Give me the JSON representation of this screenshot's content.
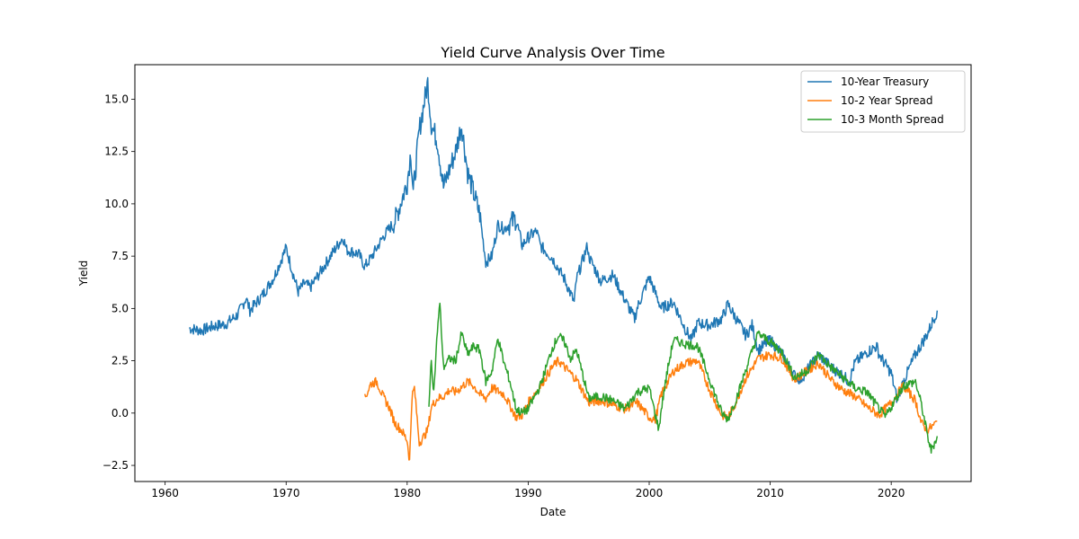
{
  "chart_data": {
    "type": "line",
    "title": "Yield Curve Analysis Over Time",
    "xlabel": "Date",
    "ylabel": "Yield",
    "x_ticks": [
      "1960",
      "1970",
      "1980",
      "1990",
      "2000",
      "2010",
      "2020"
    ],
    "y_ticks": [
      "−2.5",
      "0.0",
      "2.5",
      "5.0",
      "7.5",
      "10.0",
      "12.5",
      "15.0"
    ],
    "xlim": [
      1957.5,
      2026.6
    ],
    "ylim": [
      -3.27,
      16.65
    ],
    "grid": false,
    "legend_position": "top-right",
    "series": [
      {
        "name": "10-Year Treasury",
        "color": "#1f77b4",
        "x": [
          1962.0,
          1963.0,
          1964.0,
          1965.0,
          1966.0,
          1966.7,
          1967.0,
          1968.0,
          1969.0,
          1970.0,
          1970.5,
          1971.0,
          1971.5,
          1972.0,
          1973.0,
          1974.0,
          1974.7,
          1975.0,
          1976.0,
          1976.5,
          1977.0,
          1978.0,
          1979.0,
          1980.0,
          1980.3,
          1980.5,
          1981.0,
          1981.7,
          1982.0,
          1982.5,
          1983.0,
          1984.0,
          1984.5,
          1985.0,
          1986.0,
          1986.5,
          1987.0,
          1987.5,
          1988.0,
          1989.0,
          1989.5,
          1990.0,
          1990.7,
          1991.0,
          1992.0,
          1993.0,
          1993.8,
          1994.0,
          1994.9,
          1995.0,
          1996.0,
          1997.0,
          1998.0,
          1998.8,
          1999.0,
          2000.0,
          2001.0,
          2002.0,
          2003.0,
          2003.5,
          2004.0,
          2005.0,
          2006.0,
          2006.5,
          2007.0,
          2008.0,
          2008.5,
          2009.0,
          2010.0,
          2011.0,
          2012.0,
          2012.5,
          2013.0,
          2014.0,
          2015.0,
          2016.0,
          2016.5,
          2017.0,
          2018.0,
          2018.8,
          2019.0,
          2020.0,
          2020.5,
          2021.0,
          2022.0,
          2023.0,
          2023.8
        ],
        "y": [
          4.05,
          3.95,
          4.15,
          4.25,
          4.7,
          5.5,
          4.9,
          5.6,
          6.5,
          7.9,
          6.8,
          5.8,
          6.2,
          6.0,
          6.9,
          7.8,
          8.4,
          7.8,
          7.6,
          7.0,
          7.4,
          8.4,
          9.2,
          11.0,
          12.5,
          10.5,
          13.5,
          15.8,
          13.8,
          13.0,
          10.8,
          12.5,
          13.8,
          11.5,
          9.5,
          7.2,
          7.5,
          9.0,
          8.8,
          9.3,
          8.0,
          8.4,
          8.7,
          8.0,
          7.4,
          6.4,
          5.3,
          6.4,
          8.0,
          7.5,
          6.3,
          6.6,
          5.4,
          4.5,
          5.0,
          6.5,
          5.0,
          5.3,
          4.0,
          3.5,
          4.3,
          4.2,
          4.5,
          5.2,
          4.7,
          3.7,
          4.2,
          3.0,
          3.5,
          2.8,
          1.8,
          1.6,
          2.0,
          2.8,
          2.2,
          1.8,
          1.5,
          2.4,
          2.9,
          3.2,
          2.8,
          1.9,
          0.6,
          1.5,
          2.8,
          3.8,
          4.9
        ]
      },
      {
        "name": "10-2 Year Spread",
        "color": "#ff7f0e",
        "x": [
          1976.5,
          1977.0,
          1977.5,
          1978.0,
          1978.5,
          1979.0,
          1979.5,
          1980.0,
          1980.2,
          1980.4,
          1980.6,
          1981.0,
          1981.3,
          1981.7,
          1982.0,
          1982.5,
          1983.0,
          1983.5,
          1984.0,
          1985.0,
          1985.5,
          1986.0,
          1986.5,
          1987.0,
          1988.0,
          1989.0,
          1989.5,
          1990.0,
          1991.0,
          1992.0,
          1992.5,
          1993.0,
          1994.0,
          1995.0,
          1996.0,
          1997.0,
          1998.0,
          1999.0,
          2000.0,
          2000.5,
          2001.0,
          2002.0,
          2003.0,
          2004.0,
          2005.0,
          2006.0,
          2006.5,
          2007.0,
          2008.0,
          2009.0,
          2010.0,
          2011.0,
          2012.0,
          2013.0,
          2014.0,
          2015.0,
          2016.0,
          2017.0,
          2018.0,
          2019.0,
          2019.5,
          2020.0,
          2021.0,
          2022.0,
          2022.5,
          2023.0,
          2023.5,
          2023.8
        ],
        "y": [
          0.7,
          1.4,
          1.5,
          0.8,
          0.3,
          -0.5,
          -0.8,
          -1.3,
          -2.3,
          0.8,
          1.2,
          -1.4,
          -1.2,
          -0.8,
          0.3,
          0.7,
          0.8,
          1.1,
          1.0,
          1.5,
          1.3,
          0.9,
          0.7,
          1.2,
          0.9,
          -0.2,
          -0.1,
          0.5,
          1.3,
          2.2,
          2.5,
          2.2,
          1.6,
          0.5,
          0.6,
          0.4,
          0.2,
          0.5,
          -0.2,
          -0.3,
          0.9,
          2.0,
          2.4,
          2.5,
          1.1,
          -0.1,
          -0.2,
          0.3,
          1.7,
          2.6,
          2.8,
          2.6,
          1.6,
          2.0,
          2.4,
          1.6,
          1.1,
          0.8,
          0.3,
          -0.1,
          0.2,
          0.5,
          1.3,
          0.6,
          -0.5,
          -0.8,
          -0.6,
          -0.4
        ]
      },
      {
        "name": "10-3 Month Spread",
        "color": "#2ca02c",
        "x": [
          1981.8,
          1982.0,
          1982.2,
          1982.5,
          1982.7,
          1983.0,
          1983.5,
          1984.0,
          1984.5,
          1985.0,
          1985.5,
          1986.0,
          1986.5,
          1987.0,
          1987.5,
          1988.0,
          1988.5,
          1989.0,
          1989.5,
          1990.0,
          1991.0,
          1992.0,
          1992.5,
          1993.0,
          1993.5,
          1994.0,
          1995.0,
          1996.0,
          1997.0,
          1998.0,
          1999.0,
          2000.0,
          2000.8,
          2001.0,
          2001.5,
          2002.0,
          2003.0,
          2004.0,
          2005.0,
          2006.0,
          2006.5,
          2007.0,
          2007.5,
          2008.0,
          2009.0,
          2010.0,
          2011.0,
          2012.0,
          2013.0,
          2014.0,
          2015.0,
          2016.0,
          2017.0,
          2018.0,
          2019.0,
          2019.5,
          2020.0,
          2021.0,
          2022.0,
          2022.5,
          2023.0,
          2023.3,
          2023.8
        ],
        "y": [
          0.5,
          2.5,
          1.0,
          4.0,
          5.2,
          2.2,
          2.6,
          2.5,
          3.8,
          2.8,
          3.2,
          3.0,
          1.5,
          2.0,
          3.6,
          2.4,
          1.5,
          0.2,
          0.0,
          0.2,
          1.3,
          3.1,
          3.7,
          3.4,
          2.6,
          3.0,
          0.7,
          0.8,
          0.6,
          0.2,
          1.0,
          1.2,
          -0.8,
          0.2,
          2.0,
          3.5,
          3.3,
          3.2,
          1.6,
          0.0,
          -0.3,
          0.4,
          1.2,
          2.1,
          3.8,
          3.4,
          2.9,
          1.7,
          2.0,
          2.8,
          2.2,
          1.7,
          1.2,
          1.0,
          0.2,
          -0.2,
          0.3,
          1.3,
          1.5,
          0.4,
          -1.1,
          -1.8,
          -1.1
        ]
      }
    ]
  }
}
